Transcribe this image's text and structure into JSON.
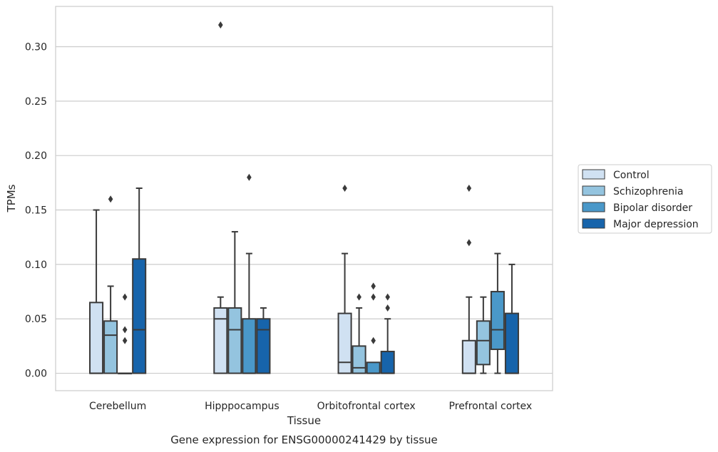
{
  "chart_data": {
    "type": "box",
    "title": "Gene expression for ENSG00000241429 by tissue",
    "xlabel": "Tissue",
    "ylabel": "TPMs",
    "ylim": [
      -0.016,
      0.337
    ],
    "yticks": [
      "0.00",
      "0.05",
      "0.10",
      "0.15",
      "0.20",
      "0.25",
      "0.30"
    ],
    "ytick_values": [
      0,
      0.05,
      0.1,
      0.15,
      0.2,
      0.25,
      0.3
    ],
    "grid": true,
    "legend_position": "right",
    "categories": [
      "Cerebellum",
      "Hipppocampus",
      "Orbitofrontal cortex",
      "Prefrontal cortex"
    ],
    "series": [
      {
        "name": "Control",
        "color": "#d0e1f2",
        "boxes": [
          {
            "q1": 0.0,
            "median": 0.0,
            "q3": 0.065,
            "whisker_low": 0.0,
            "whisker_high": 0.15,
            "outliers": []
          },
          {
            "q1": 0.0,
            "median": 0.05,
            "q3": 0.06,
            "whisker_low": 0.0,
            "whisker_high": 0.07,
            "outliers": [
              0.32
            ]
          },
          {
            "q1": 0.0,
            "median": 0.01,
            "q3": 0.055,
            "whisker_low": 0.0,
            "whisker_high": 0.11,
            "outliers": [
              0.17
            ]
          },
          {
            "q1": 0.0,
            "median": 0.0,
            "q3": 0.03,
            "whisker_low": 0.0,
            "whisker_high": 0.07,
            "outliers": [
              0.12,
              0.17
            ]
          }
        ]
      },
      {
        "name": "Schizophrenia",
        "color": "#94c4df",
        "boxes": [
          {
            "q1": 0.0,
            "median": 0.035,
            "q3": 0.048,
            "whisker_low": 0.0,
            "whisker_high": 0.08,
            "outliers": [
              0.16
            ]
          },
          {
            "q1": 0.0,
            "median": 0.04,
            "q3": 0.06,
            "whisker_low": 0.0,
            "whisker_high": 0.13,
            "outliers": []
          },
          {
            "q1": 0.0,
            "median": 0.005,
            "q3": 0.025,
            "whisker_low": 0.0,
            "whisker_high": 0.06,
            "outliers": [
              0.07
            ]
          },
          {
            "q1": 0.008,
            "median": 0.03,
            "q3": 0.048,
            "whisker_low": 0.0,
            "whisker_high": 0.07,
            "outliers": []
          }
        ]
      },
      {
        "name": "Bipolar disorder",
        "color": "#4a98c9",
        "boxes": [
          {
            "q1": 0.0,
            "median": 0.0,
            "q3": 0.0,
            "whisker_low": 0.0,
            "whisker_high": 0.0,
            "outliers": [
              0.03,
              0.04,
              0.07
            ]
          },
          {
            "q1": 0.0,
            "median": 0.0,
            "q3": 0.05,
            "whisker_low": 0.0,
            "whisker_high": 0.11,
            "outliers": [
              0.18
            ]
          },
          {
            "q1": 0.0,
            "median": 0.0,
            "q3": 0.01,
            "whisker_low": 0.0,
            "whisker_high": 0.01,
            "outliers": [
              0.03,
              0.07,
              0.08
            ]
          },
          {
            "q1": 0.022,
            "median": 0.04,
            "q3": 0.075,
            "whisker_low": 0.0,
            "whisker_high": 0.11,
            "outliers": []
          }
        ]
      },
      {
        "name": "Major depression",
        "color": "#1764ab",
        "boxes": [
          {
            "q1": 0.0,
            "median": 0.04,
            "q3": 0.105,
            "whisker_low": 0.0,
            "whisker_high": 0.17,
            "outliers": []
          },
          {
            "q1": 0.0,
            "median": 0.04,
            "q3": 0.05,
            "whisker_low": 0.0,
            "whisker_high": 0.06,
            "outliers": []
          },
          {
            "q1": 0.0,
            "median": 0.0,
            "q3": 0.02,
            "whisker_low": 0.0,
            "whisker_high": 0.05,
            "outliers": [
              0.06,
              0.07
            ]
          },
          {
            "q1": 0.0,
            "median": 0.0,
            "q3": 0.055,
            "whisker_low": 0.0,
            "whisker_high": 0.1,
            "outliers": []
          }
        ]
      }
    ]
  }
}
